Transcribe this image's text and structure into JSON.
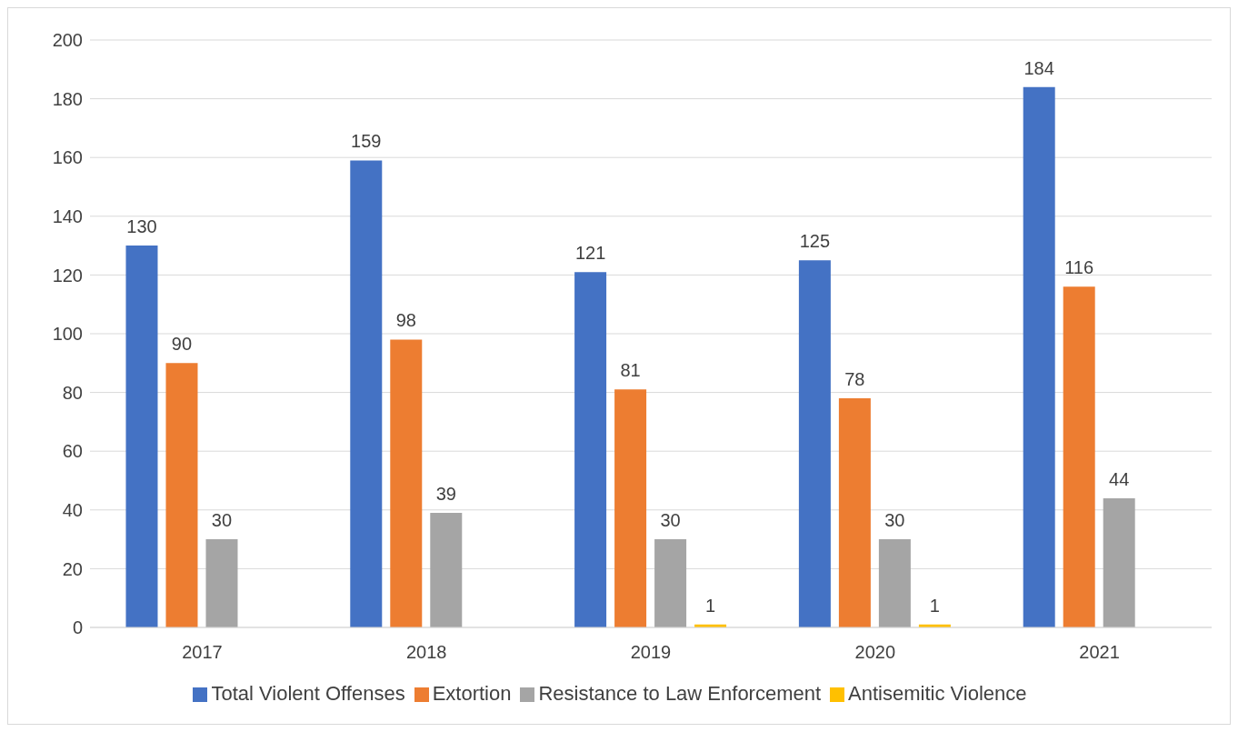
{
  "chart_data": {
    "type": "bar",
    "categories": [
      "2017",
      "2018",
      "2019",
      "2020",
      "2021"
    ],
    "series": [
      {
        "name": "Total Violent Offenses",
        "color": "#4472c4",
        "values": [
          130,
          159,
          121,
          125,
          184
        ]
      },
      {
        "name": "Extortion",
        "color": "#ed7d31",
        "values": [
          90,
          98,
          81,
          78,
          116
        ]
      },
      {
        "name": "Resistance to Law Enforcement",
        "color": "#a5a5a5",
        "values": [
          30,
          39,
          30,
          30,
          44
        ]
      },
      {
        "name": "Antisemitic Violence",
        "color": "#ffc000",
        "values": [
          null,
          null,
          1,
          1,
          null
        ]
      }
    ],
    "ylim": [
      0,
      200
    ],
    "yticks": [
      0,
      20,
      40,
      60,
      80,
      100,
      120,
      140,
      160,
      180,
      200
    ],
    "grid": "y",
    "legend": "bottom",
    "data_labels": true
  }
}
